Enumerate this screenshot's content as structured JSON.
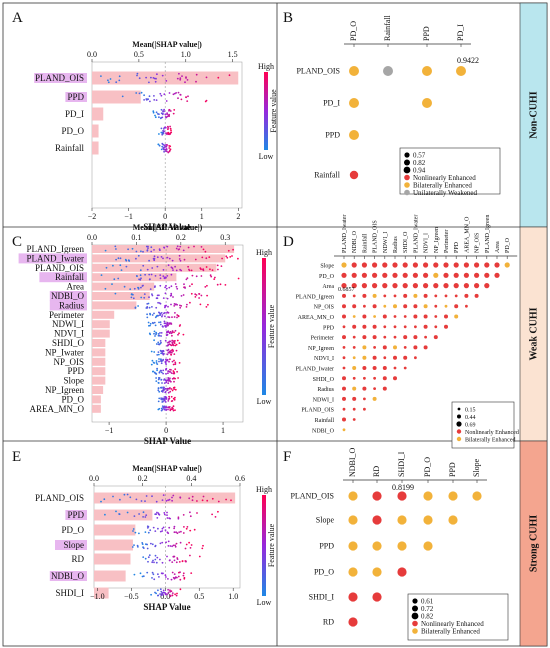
{
  "panel_letters": [
    "A",
    "B",
    "C",
    "D",
    "E",
    "F"
  ],
  "row_labels": [
    {
      "text": "Non-CUHI",
      "color": "#b9e6ee"
    },
    {
      "text": "Weak CUHI",
      "color": "#fbe3d2"
    },
    {
      "text": "Strong CUHI",
      "color": "#f4a58f"
    }
  ],
  "colors": {
    "bar": "#f8c0c4",
    "highlight": "#e7b6ef",
    "low": "#1e88e5",
    "high": "#ff0052",
    "nonlinear": "#e63b3b",
    "bilateral": "#f2b23a",
    "unilateral": "#a6a6a6"
  },
  "shap_common": {
    "top_axis_label": "Mean(|SHAP value|)",
    "bottom_axis_label": "SHAP Value",
    "colorbar_high": "High",
    "colorbar_low": "Low",
    "colorbar_label": "Feature value"
  },
  "legend_common": {
    "nonlinear": "Nonlinearly Enhanced",
    "bilateral": "Bilaterally Enhanced",
    "unilateral": "Unilaterally Weakened"
  },
  "panels_shap": [
    {
      "letter": "A",
      "features": [
        "PLAND_OIS",
        "PPD",
        "PD_I",
        "PD_O",
        "Rainfall"
      ],
      "highlight": [
        "PLAND_OIS",
        "PPD"
      ],
      "mean_abs": [
        1.56,
        0.52,
        0.12,
        0.07,
        0.07
      ],
      "top_ticks": [
        "0.0",
        "0.5",
        "1.0",
        "1.5"
      ],
      "top_range": [
        0,
        1.6
      ],
      "bottom_ticks": [
        "−2",
        "−1",
        "0",
        "1",
        "2"
      ],
      "bottom_range": [
        -2,
        2.1
      ]
    },
    {
      "letter": "C",
      "features": [
        "PLAND_Igreen",
        "PLAND_Iwater",
        "PLAND_OIS",
        "Rainfall",
        "Area",
        "NDBI_O",
        "Radius",
        "Perimeter",
        "NDWI_I",
        "NDVI_I",
        "SHDI_O",
        "NP_Iwater",
        "NP_OIS",
        "PPD",
        "Slope",
        "NP_Igreen",
        "PD_O",
        "AREA_MN_O"
      ],
      "highlight": [
        "PLAND_Iwater",
        "Rainfall",
        "NDBI_O",
        "Radius"
      ],
      "mean_abs": [
        0.32,
        0.3,
        0.28,
        0.19,
        0.14,
        0.13,
        0.1,
        0.05,
        0.04,
        0.04,
        0.03,
        0.03,
        0.03,
        0.03,
        0.03,
        0.025,
        0.02,
        0.02
      ],
      "top_ticks": [
        "0.0",
        "0.1",
        "0.2",
        "0.3"
      ],
      "top_range": [
        0,
        0.34
      ],
      "bottom_ticks": [
        "−1",
        "0",
        "1"
      ],
      "bottom_range": [
        -1.3,
        1.35
      ]
    },
    {
      "letter": "E",
      "features": [
        "PLAND_OIS",
        "PPD",
        "PD_O",
        "Slope",
        "RD",
        "NDBI_O",
        "SHDI_I"
      ],
      "highlight": [
        "PPD",
        "Slope",
        "NDBI_O"
      ],
      "mean_abs": [
        0.58,
        0.24,
        0.17,
        0.16,
        0.15,
        0.13,
        0.06
      ],
      "top_ticks": [
        "0.0",
        "0.2",
        "0.4",
        "0.6"
      ],
      "top_range": [
        0,
        0.6
      ],
      "bottom_ticks": [
        "−1.0",
        "−0.5",
        "0.0",
        "0.5",
        "1.0"
      ],
      "bottom_range": [
        -1.05,
        1.1
      ]
    }
  ],
  "panels_interaction": [
    {
      "letter": "B",
      "cols": [
        "PD_O",
        "Rainfall",
        "PPD",
        "PD_I"
      ],
      "rows": [
        "PLAND_OIS",
        "PD_I",
        "PPD",
        "Rainfall"
      ],
      "annotation": "0.9422",
      "size_legend": [
        "0.57",
        "0.82",
        "0.94"
      ]
    },
    {
      "letter": "D",
      "cols": [
        "PLAND_Iwater",
        "NDBI_O",
        "Rainfall",
        "PLAND_OIS",
        "NDWI_I",
        "Radius",
        "SHDI_O",
        "PLAND_Iwater",
        "NDVI_I",
        "NP_Igreen",
        "Perimeter",
        "PPD",
        "AREA_MN_O",
        "NP_OIS",
        "PLAND_Igreen",
        "Area",
        "PD_O"
      ],
      "rows": [
        "Slope",
        "PD_O",
        "Area",
        "PLAND_Igreen",
        "NP_OIS",
        "AREA_MN_O",
        "PPD",
        "Perimeter",
        "NP_Igreen",
        "NDVI_I",
        "PLAND_Iwater",
        "SHDI_O",
        "Radius",
        "NDWI_I",
        "PLAND_OIS",
        "Rainfall",
        "NDBI_O"
      ],
      "annotation": "0.6857",
      "size_legend": [
        "0.15",
        "0.44",
        "0.69"
      ]
    },
    {
      "letter": "F",
      "cols": [
        "NDBI_O",
        "RD",
        "SHDI_I",
        "PD_O",
        "PPD",
        "Slope"
      ],
      "rows": [
        "PLAND_OIS",
        "Slope",
        "PPD",
        "PD_O",
        "SHDI_I",
        "RD"
      ],
      "annotation": "0.8199",
      "size_legend": [
        "0.61",
        "0.72",
        "0.82"
      ]
    }
  ],
  "chart_data": [
    {
      "type": "bar",
      "title": "",
      "categories": [
        "PLAND_OIS",
        "PPD",
        "PD_I",
        "PD_O",
        "Rainfall"
      ],
      "values": [
        1.56,
        0.52,
        0.12,
        0.07,
        0.07
      ],
      "xlabel": "Mean(|SHAP value|)",
      "xlim": [
        0,
        1.6
      ]
    },
    {
      "type": "scatter",
      "title": "",
      "xlabel": "",
      "ylabel": "",
      "series": [
        {
          "name": "Nonlinearly Enhanced",
          "points": [
            [
              "PLAND_OIS",
              "Rainfall"
            ]
          ]
        },
        {
          "name": "Bilaterally Enhanced",
          "points": [
            [
              "PLAND_OIS",
              "PD_O"
            ],
            [
              "PLAND_OIS",
              "PPD"
            ],
            [
              "PLAND_OIS",
              "PD_I"
            ],
            [
              "PD_I",
              "PD_O"
            ],
            [
              "PD_I",
              "PPD"
            ],
            [
              "PPD",
              "PD_O"
            ]
          ]
        },
        {
          "name": "Unilaterally Weakened",
          "points": [
            [
              "PLAND_OIS",
              "Rainfall"
            ]
          ]
        }
      ]
    },
    {
      "type": "bar",
      "title": "",
      "categories": [
        "PLAND_Igreen",
        "PLAND_Iwater",
        "PLAND_OIS",
        "Rainfall",
        "Area",
        "NDBI_O",
        "Radius",
        "Perimeter",
        "NDWI_I",
        "NDVI_I",
        "SHDI_O",
        "NP_Iwater",
        "NP_OIS",
        "PPD",
        "Slope",
        "NP_Igreen",
        "PD_O",
        "AREA_MN_O"
      ],
      "values": [
        0.32,
        0.3,
        0.28,
        0.19,
        0.14,
        0.13,
        0.1,
        0.05,
        0.04,
        0.04,
        0.03,
        0.03,
        0.03,
        0.03,
        0.03,
        0.025,
        0.02,
        0.02
      ],
      "xlabel": "Mean(|SHAP value|)",
      "xlim": [
        0,
        0.34
      ]
    },
    {
      "type": "heatmap",
      "title": "",
      "xlabel": "",
      "ylabel": "",
      "legend": [
        "Nonlinearly Enhanced",
        "Bilaterally Enhanced"
      ]
    },
    {
      "type": "bar",
      "title": "",
      "categories": [
        "PLAND_OIS",
        "PPD",
        "PD_O",
        "Slope",
        "RD",
        "NDBI_O",
        "SHDI_I"
      ],
      "values": [
        0.58,
        0.24,
        0.17,
        0.16,
        0.15,
        0.13,
        0.06
      ],
      "xlabel": "Mean(|SHAP value|)",
      "xlim": [
        0,
        0.6
      ]
    },
    {
      "type": "scatter",
      "title": "",
      "xlabel": "",
      "ylabel": "",
      "series": [
        {
          "name": "Nonlinearly Enhanced",
          "points": [
            [
              "PLAND_OIS",
              "RD"
            ],
            [
              "PLAND_OIS",
              "SHDI_I"
            ],
            [
              "Slope",
              "RD"
            ],
            [
              "SHDI_I",
              "NDBI_O"
            ],
            [
              "SHDI_I",
              "RD"
            ],
            [
              "RD",
              "NDBI_O"
            ],
            [
              "PD_O",
              "SHDI_I"
            ]
          ]
        },
        {
          "name": "Bilaterally Enhanced",
          "points": [
            [
              "PLAND_OIS",
              "NDBI_O"
            ],
            [
              "PLAND_OIS",
              "PD_O"
            ],
            [
              "PLAND_OIS",
              "PPD"
            ],
            [
              "PLAND_OIS",
              "Slope"
            ],
            [
              "Slope",
              "NDBI_O"
            ],
            [
              "Slope",
              "SHDI_I"
            ],
            [
              "Slope",
              "PD_O"
            ],
            [
              "Slope",
              "PPD"
            ],
            [
              "PPD",
              "NDBI_O"
            ],
            [
              "PPD",
              "RD"
            ],
            [
              "PPD",
              "SHDI_I"
            ],
            [
              "PPD",
              "PD_O"
            ],
            [
              "PD_O",
              "NDBI_O"
            ],
            [
              "PD_O",
              "RD"
            ]
          ]
        }
      ]
    }
  ]
}
